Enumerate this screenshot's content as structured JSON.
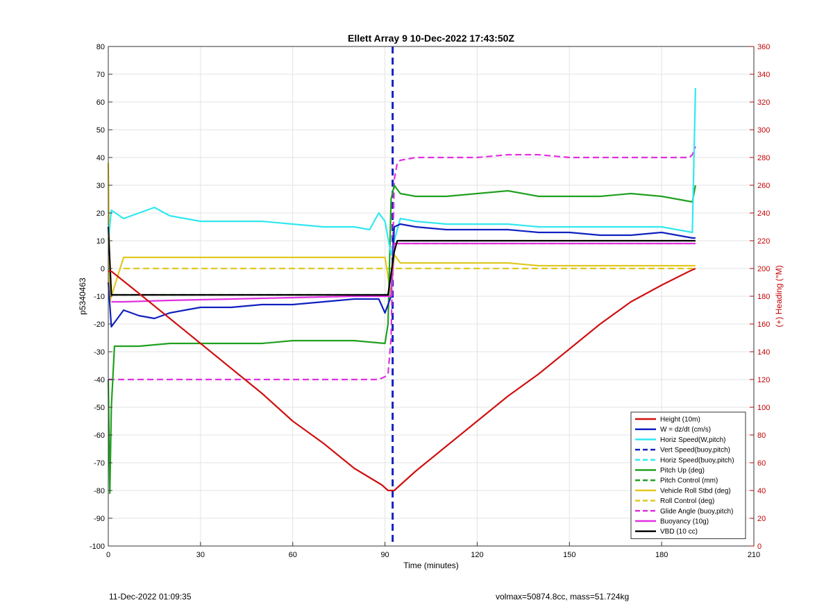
{
  "chart_data": {
    "type": "line",
    "title": "Ellett Array 9 10-Dec-2022 17:43:50Z",
    "xlabel": "Time (minutes)",
    "ylabel": "p5340463",
    "y2label": "(+) Heading (°M)",
    "xlim": [
      0,
      210
    ],
    "ylim": [
      -100,
      80
    ],
    "y2lim": [
      0,
      360
    ],
    "xticks": [
      0,
      30,
      60,
      90,
      120,
      150,
      180,
      210
    ],
    "yticks": [
      80,
      70,
      60,
      50,
      40,
      30,
      20,
      10,
      0,
      -10,
      -20,
      -30,
      -40,
      -50,
      -60,
      -70,
      -80,
      -90,
      -100
    ],
    "y2ticks": [
      360,
      340,
      320,
      300,
      280,
      260,
      240,
      220,
      200,
      180,
      160,
      140,
      120,
      100,
      80,
      60,
      40,
      20,
      0
    ],
    "grid": true,
    "legend_position": "bottom-right",
    "vline_x": 92.5,
    "series": [
      {
        "name": "Height (10m)",
        "color": "#d01010",
        "style": "solid",
        "x": [
          0,
          1,
          10,
          20,
          30,
          40,
          50,
          60,
          70,
          80,
          89,
          91,
          93,
          95,
          100,
          110,
          120,
          130,
          140,
          150,
          160,
          170,
          180,
          189,
          191
        ],
        "y": [
          -1,
          -1,
          -9,
          -18,
          -27,
          -36,
          -45,
          -55,
          -63,
          -72,
          -78,
          -80,
          -80,
          -78,
          -73,
          -64,
          -55,
          -46,
          -38,
          -29,
          -20,
          -12,
          -6,
          -1,
          0
        ]
      },
      {
        "name": "W = dz/dt (cm/s)",
        "color": "#1020c0",
        "style": "solid",
        "x": [
          0,
          1,
          5,
          10,
          15,
          20,
          30,
          40,
          50,
          60,
          70,
          80,
          88,
          90,
          92,
          93,
          95,
          100,
          110,
          120,
          130,
          140,
          150,
          160,
          170,
          180,
          185,
          190,
          191
        ],
        "y": [
          -5,
          -21,
          -15,
          -17,
          -18,
          -16,
          -14,
          -14,
          -13,
          -13,
          -12,
          -11,
          -11,
          -16,
          -10,
          15,
          16,
          15,
          14,
          14,
          14,
          13,
          13,
          12,
          12,
          13,
          12,
          11,
          11
        ]
      },
      {
        "name": "Horiz Speed(W,pitch)",
        "color": "#30e8f0",
        "style": "solid",
        "x": [
          0,
          1,
          5,
          10,
          15,
          20,
          25,
          30,
          40,
          50,
          60,
          70,
          80,
          85,
          88,
          90,
          92,
          93,
          95,
          100,
          110,
          120,
          130,
          140,
          150,
          160,
          170,
          180,
          185,
          190,
          191
        ],
        "y": [
          10,
          21,
          18,
          20,
          22,
          19,
          18,
          17,
          17,
          17,
          16,
          15,
          15,
          14,
          20,
          17,
          5,
          10,
          18,
          17,
          16,
          16,
          16,
          15,
          15,
          15,
          15,
          15,
          14,
          13,
          65
        ]
      },
      {
        "name": "Vert Speed(buoy,pitch)",
        "color": "#1020c0",
        "style": "dashed",
        "x": [],
        "y": []
      },
      {
        "name": "Horiz Speed(buoy,pitch)",
        "color": "#30e8f0",
        "style": "dashed",
        "x": [],
        "y": []
      },
      {
        "name": "Pitch Up (deg)",
        "color": "#20a020",
        "style": "solid",
        "x": [
          0,
          0.5,
          1,
          2,
          5,
          10,
          20,
          30,
          40,
          50,
          60,
          70,
          80,
          90,
          91,
          92,
          93,
          95,
          100,
          110,
          120,
          130,
          140,
          150,
          160,
          170,
          180,
          185,
          190,
          191
        ],
        "y": [
          -40,
          -81,
          -50,
          -28,
          -28,
          -28,
          -27,
          -27,
          -27,
          -27,
          -26,
          -26,
          -26,
          -27,
          -20,
          25,
          30,
          27,
          26,
          26,
          27,
          28,
          26,
          26,
          26,
          27,
          26,
          25,
          24,
          30
        ]
      },
      {
        "name": "Pitch Control (mm)",
        "color": "#20a020",
        "style": "dashed",
        "x": [
          1,
          92,
          93,
          191
        ],
        "y": [
          -9.5,
          -9.5,
          9,
          9
        ]
      },
      {
        "name": "Vehicle Roll Stbd (deg)",
        "color": "#e0c820",
        "style": "solid",
        "x": [
          0,
          0.5,
          1,
          5,
          10,
          20,
          30,
          40,
          50,
          60,
          70,
          80,
          90,
          92,
          93,
          95,
          100,
          110,
          120,
          130,
          140,
          150,
          160,
          170,
          180,
          190,
          191
        ],
        "y": [
          38,
          -12,
          -10,
          4,
          4,
          4,
          4,
          4,
          4,
          4,
          4,
          4,
          4,
          -10,
          5,
          2,
          2,
          2,
          2,
          2,
          1,
          1,
          1,
          1,
          1,
          1,
          1
        ]
      },
      {
        "name": "Roll Control (deg)",
        "color": "#e0c820",
        "style": "dashed",
        "x": [
          5,
          90,
          93,
          191
        ],
        "y": [
          0,
          0,
          0,
          0
        ]
      },
      {
        "name": "Glide Angle (buoy,pitch)",
        "color": "#e030e0",
        "style": "dashed",
        "x": [
          0,
          2,
          5,
          10,
          20,
          30,
          40,
          50,
          60,
          70,
          80,
          88,
          90,
          91,
          92,
          93,
          94,
          95,
          100,
          110,
          120,
          130,
          140,
          150,
          160,
          170,
          180,
          189,
          190,
          191
        ],
        "y": [
          -40,
          -40,
          -40,
          -40,
          -40,
          -40,
          -40,
          -40,
          -40,
          -40,
          -40,
          -40,
          -39,
          -38,
          -25,
          32,
          38,
          39,
          40,
          40,
          40,
          41,
          41,
          40,
          40,
          40,
          40,
          40,
          41,
          44
        ]
      },
      {
        "name": "Buoyancy (10g)",
        "color": "#e030e0",
        "style": "solid",
        "x": [
          1,
          5,
          20,
          40,
          60,
          80,
          92,
          93,
          120,
          150,
          180,
          191
        ],
        "y": [
          -12,
          -12,
          -11.5,
          -11,
          -10.5,
          -10,
          -10,
          9,
          9,
          9,
          9,
          9
        ]
      },
      {
        "name": "VBD (10 cc)",
        "color": "#000000",
        "style": "solid",
        "x": [
          0,
          1,
          2,
          91,
          93,
          94,
          190,
          191
        ],
        "y": [
          15,
          -9.5,
          -9.5,
          -9.5,
          6,
          10,
          10,
          10
        ]
      }
    ]
  },
  "footer": {
    "timestamp": "11-Dec-2022 01:09:35",
    "stats": "volmax=50874.8cc, mass=51.724kg"
  }
}
